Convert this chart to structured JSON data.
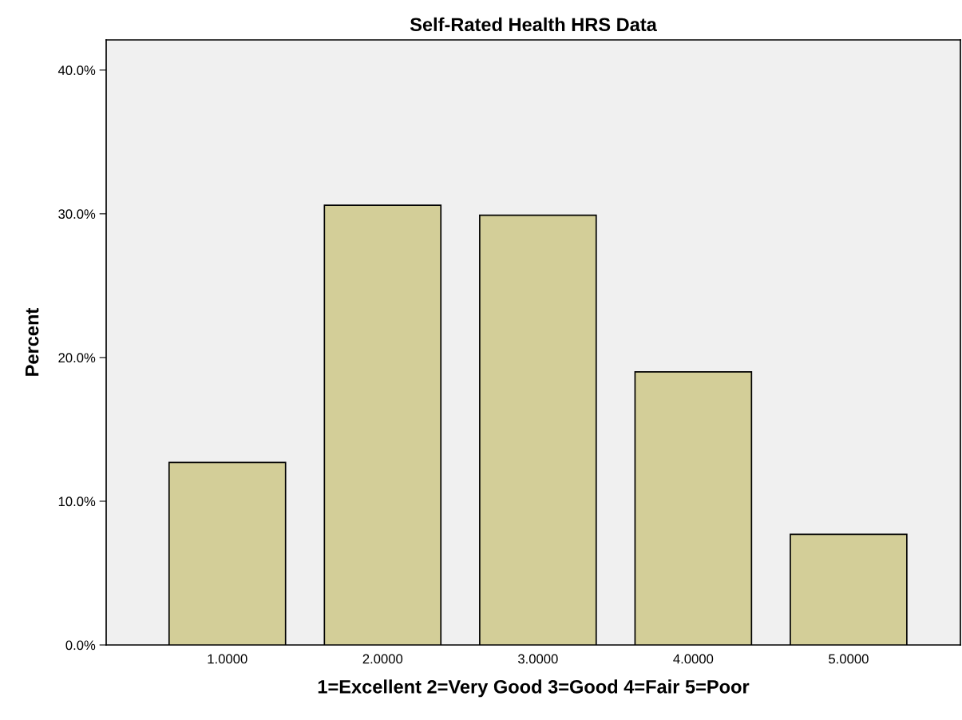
{
  "chart_data": {
    "type": "bar",
    "title": "Self-Rated Health HRS Data",
    "xlabel": "1=Excellent 2=Very Good 3=Good 4=Fair 5=Poor",
    "ylabel": "Percent",
    "categories": [
      "1.0000",
      "2.0000",
      "3.0000",
      "4.0000",
      "5.0000"
    ],
    "values": [
      12.7,
      30.6,
      29.9,
      19.0,
      7.7
    ],
    "color": "#d3ce98",
    "ylim": [
      0,
      42.1
    ],
    "yticks": [
      {
        "value": 0,
        "label": "0.0%"
      },
      {
        "value": 10,
        "label": "10.0%"
      },
      {
        "value": 20,
        "label": "20.0%"
      },
      {
        "value": 30,
        "label": "30.0%"
      },
      {
        "value": 40,
        "label": "40.0%"
      }
    ],
    "grid": false,
    "legend": false
  }
}
